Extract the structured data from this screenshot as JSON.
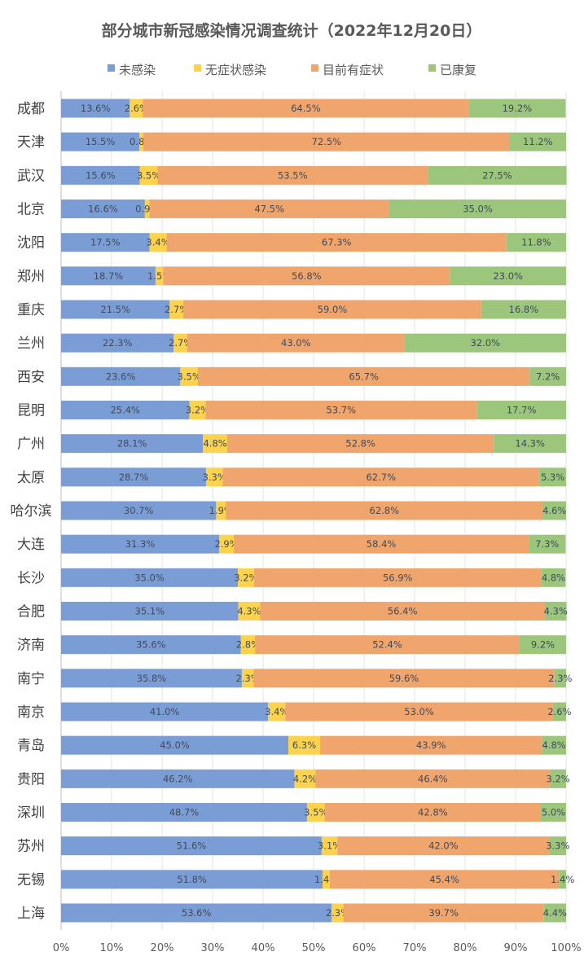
{
  "chart_data": {
    "type": "bar",
    "orientation": "horizontal",
    "stacked": "percent",
    "title": "部分城市新冠感染情况调查统计（2022年12月20日）",
    "xlabel": "",
    "ylabel": "",
    "xlim": [
      0,
      100
    ],
    "x_ticks": [
      "0%",
      "10%",
      "20%",
      "30%",
      "40%",
      "50%",
      "60%",
      "70%",
      "80%",
      "90%",
      "100%"
    ],
    "grid": true,
    "legend_position": "top",
    "categories": [
      "成都",
      "天津",
      "武汉",
      "北京",
      "沈阳",
      "郑州",
      "重庆",
      "兰州",
      "西安",
      "昆明",
      "广州",
      "太原",
      "哈尔滨",
      "大连",
      "长沙",
      "合肥",
      "济南",
      "南宁",
      "南京",
      "青岛",
      "贵阳",
      "深圳",
      "苏州",
      "无锡",
      "上海"
    ],
    "series": [
      {
        "name": "未感染",
        "color": "#7b9dd6",
        "values": [
          13.6,
          15.5,
          15.6,
          16.6,
          17.5,
          18.7,
          21.5,
          22.3,
          23.6,
          25.4,
          28.1,
          28.7,
          30.7,
          31.3,
          35.0,
          35.1,
          35.6,
          35.8,
          41.0,
          45.0,
          46.2,
          48.7,
          51.6,
          51.8,
          53.6
        ]
      },
      {
        "name": "无症状感染",
        "color": "#fdd24c",
        "values": [
          2.6,
          0.8,
          3.5,
          0.9,
          3.4,
          1.5,
          2.7,
          2.7,
          3.5,
          3.2,
          4.8,
          3.3,
          1.9,
          2.9,
          3.2,
          4.3,
          2.8,
          2.3,
          3.4,
          6.3,
          4.2,
          3.5,
          3.1,
          1.4,
          2.3
        ]
      },
      {
        "name": "目前有症状",
        "color": "#f0a56c",
        "values": [
          64.5,
          72.5,
          53.5,
          47.5,
          67.3,
          56.8,
          59.0,
          43.0,
          65.7,
          53.7,
          52.8,
          62.7,
          62.8,
          58.4,
          56.9,
          56.4,
          52.4,
          59.6,
          53.0,
          43.9,
          46.4,
          42.8,
          42.0,
          45.4,
          39.7
        ]
      },
      {
        "name": "已康复",
        "color": "#9cc67b",
        "values": [
          19.2,
          11.2,
          27.5,
          35.0,
          11.8,
          23.0,
          16.8,
          32.0,
          7.2,
          17.7,
          14.3,
          5.3,
          4.6,
          7.3,
          4.8,
          4.3,
          9.2,
          2.3,
          2.6,
          4.8,
          3.2,
          5.0,
          3.3,
          1.4,
          4.4
        ]
      }
    ]
  }
}
